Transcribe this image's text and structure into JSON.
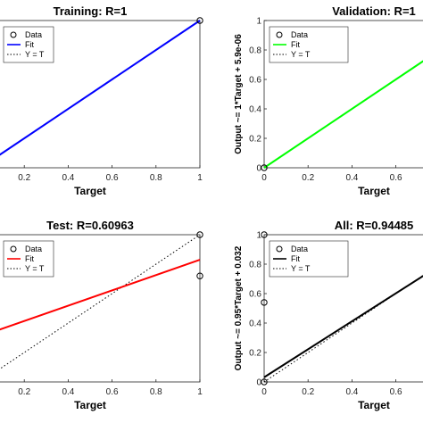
{
  "chart_data": [
    {
      "type": "scatter",
      "title": "Training: R=1",
      "xlabel": "Target",
      "ylabel": "",
      "xlim": [
        0,
        1
      ],
      "ylim": [
        0,
        1
      ],
      "x_ticks": [
        "0.2",
        "0.4",
        "0.6",
        "0.8",
        "1"
      ],
      "y_ticks": [],
      "grid": false,
      "legend_placement": "top-left",
      "legend": [
        "Data",
        "Fit",
        "Y = T"
      ],
      "series": [
        {
          "name": "Data",
          "kind": "points",
          "color": "#000000",
          "x": [
            1
          ],
          "y": [
            1
          ]
        },
        {
          "name": "Fit",
          "kind": "line",
          "color": "#0000ff",
          "x": [
            0,
            1
          ],
          "y": [
            0,
            1
          ]
        },
        {
          "name": "Y = T",
          "kind": "dotted",
          "color": "#000000",
          "x": [
            0,
            1
          ],
          "y": [
            0,
            1
          ]
        }
      ]
    },
    {
      "type": "scatter",
      "title": "Validation: R=1",
      "xlabel": "Target",
      "ylabel": "Output ~= 1*Target + 5.9e-06",
      "xlim": [
        0,
        1
      ],
      "ylim": [
        0,
        1
      ],
      "x_ticks": [
        "0",
        "0.2",
        "0.4",
        "0.6"
      ],
      "y_ticks": [
        "0",
        "0.2",
        "0.4",
        "0.6",
        "0.8",
        "1"
      ],
      "grid": false,
      "legend_placement": "top-left",
      "legend": [
        "Data",
        "Fit",
        "Y = T"
      ],
      "series": [
        {
          "name": "Data",
          "kind": "points",
          "color": "#000000",
          "x": [
            0
          ],
          "y": [
            0
          ]
        },
        {
          "name": "Fit",
          "kind": "line",
          "color": "#00ff00",
          "x": [
            0,
            1
          ],
          "y": [
            0,
            1
          ]
        },
        {
          "name": "Y = T",
          "kind": "dotted",
          "color": "#000000",
          "x": [
            0,
            1
          ],
          "y": [
            0,
            1
          ]
        }
      ]
    },
    {
      "type": "scatter",
      "title": "Test: R=0.60963",
      "xlabel": "Target",
      "ylabel": "",
      "xlim": [
        0,
        1
      ],
      "ylim": [
        0,
        1
      ],
      "x_ticks": [
        "0.2",
        "0.4",
        "0.6",
        "0.8",
        "1"
      ],
      "y_ticks": [],
      "grid": false,
      "legend_placement": "top-left",
      "legend": [
        "Data",
        "Fit",
        "Y = T"
      ],
      "series": [
        {
          "name": "Data",
          "kind": "points",
          "color": "#000000",
          "x": [
            1,
            1
          ],
          "y": [
            1,
            0.72
          ]
        },
        {
          "name": "Fit",
          "kind": "line",
          "color": "#ff0000",
          "x": [
            0,
            1
          ],
          "y": [
            0.31,
            0.83
          ]
        },
        {
          "name": "Y = T",
          "kind": "dotted",
          "color": "#000000",
          "x": [
            0,
            1
          ],
          "y": [
            0,
            1
          ]
        }
      ]
    },
    {
      "type": "scatter",
      "title": "All: R=0.94485",
      "xlabel": "Target",
      "ylabel": "Output ~= 0.95*Target + 0.032",
      "xlim": [
        0,
        1
      ],
      "ylim": [
        0,
        1
      ],
      "x_ticks": [
        "0",
        "0.2",
        "0.4",
        "0.6"
      ],
      "y_ticks": [
        "0",
        "0.2",
        "0.4",
        "0.6",
        "0.8",
        "1"
      ],
      "grid": false,
      "legend_placement": "top-left",
      "legend": [
        "Data",
        "Fit",
        "Y = T"
      ],
      "series": [
        {
          "name": "Data",
          "kind": "points",
          "color": "#000000",
          "x": [
            0,
            0,
            0
          ],
          "y": [
            0,
            0.54,
            1
          ]
        },
        {
          "name": "Fit",
          "kind": "line",
          "color": "#000000",
          "x": [
            0,
            1
          ],
          "y": [
            0.032,
            0.982
          ]
        },
        {
          "name": "Y = T",
          "kind": "dotted",
          "color": "#000000",
          "x": [
            0,
            1
          ],
          "y": [
            0,
            1
          ]
        }
      ]
    }
  ]
}
